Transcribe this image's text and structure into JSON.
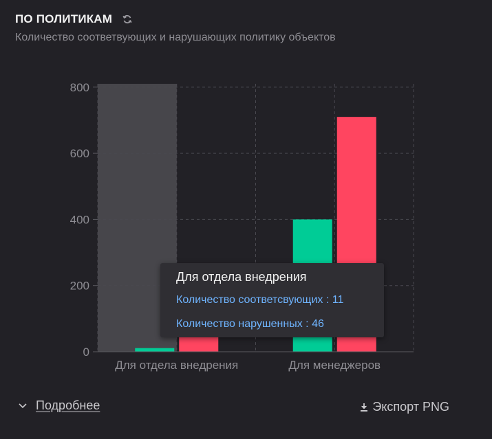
{
  "header": {
    "title": "ПО ПОЛИТИКАМ",
    "subtitle": "Количество соответвующих и нарушающих политику объектов"
  },
  "chart_data": {
    "type": "bar",
    "categories": [
      "Для отдела внедрения",
      "Для менеджеров"
    ],
    "series": [
      {
        "name": "Количество соответсвующих",
        "values": [
          11,
          400
        ],
        "color": "#00cc96"
      },
      {
        "name": "Количество нарушенных",
        "values": [
          46,
          710
        ],
        "color": "#ff4560"
      }
    ],
    "ylim": [
      0,
      810
    ],
    "yticks": [
      0,
      200,
      400,
      600,
      800
    ],
    "grid": true,
    "hover_category_index": 0
  },
  "tooltip": {
    "title": "Для отдела внедрения",
    "lines": [
      "Количество соответсвующих : 11",
      "Количество нарушенных : 46"
    ]
  },
  "footer": {
    "details_label": "Подробнее",
    "export_label": "Экспорт PNG"
  },
  "icons": {
    "refresh": "refresh-icon",
    "chevron": "chevron-down-icon",
    "download": "download-icon"
  }
}
